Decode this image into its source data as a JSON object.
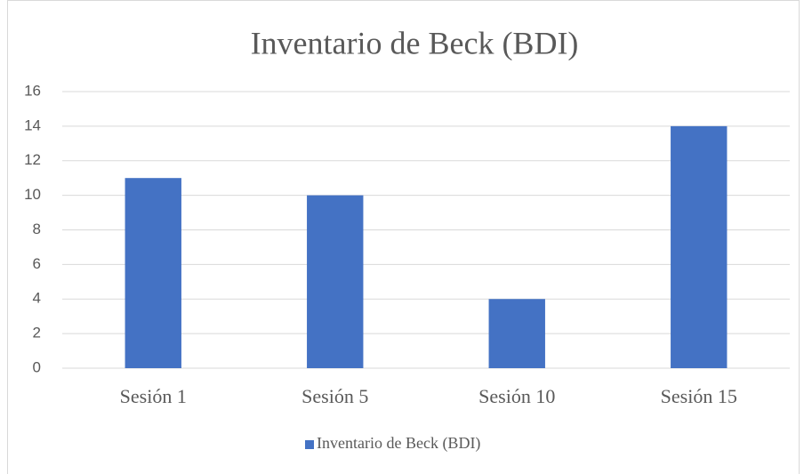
{
  "chart_data": {
    "type": "bar",
    "title": "Inventario de Beck (BDI)",
    "categories": [
      "Sesión 1",
      "Sesión 5",
      "Sesión 10",
      "Sesión 15"
    ],
    "series": [
      {
        "name": "Inventario de Beck (BDI)",
        "color": "#4472c4",
        "values": [
          11,
          10,
          4,
          14
        ]
      }
    ],
    "ylim": [
      0,
      16
    ],
    "yticks": [
      0,
      2,
      4,
      6,
      8,
      10,
      12,
      14,
      16
    ],
    "grid": true,
    "legend": "bottom"
  }
}
